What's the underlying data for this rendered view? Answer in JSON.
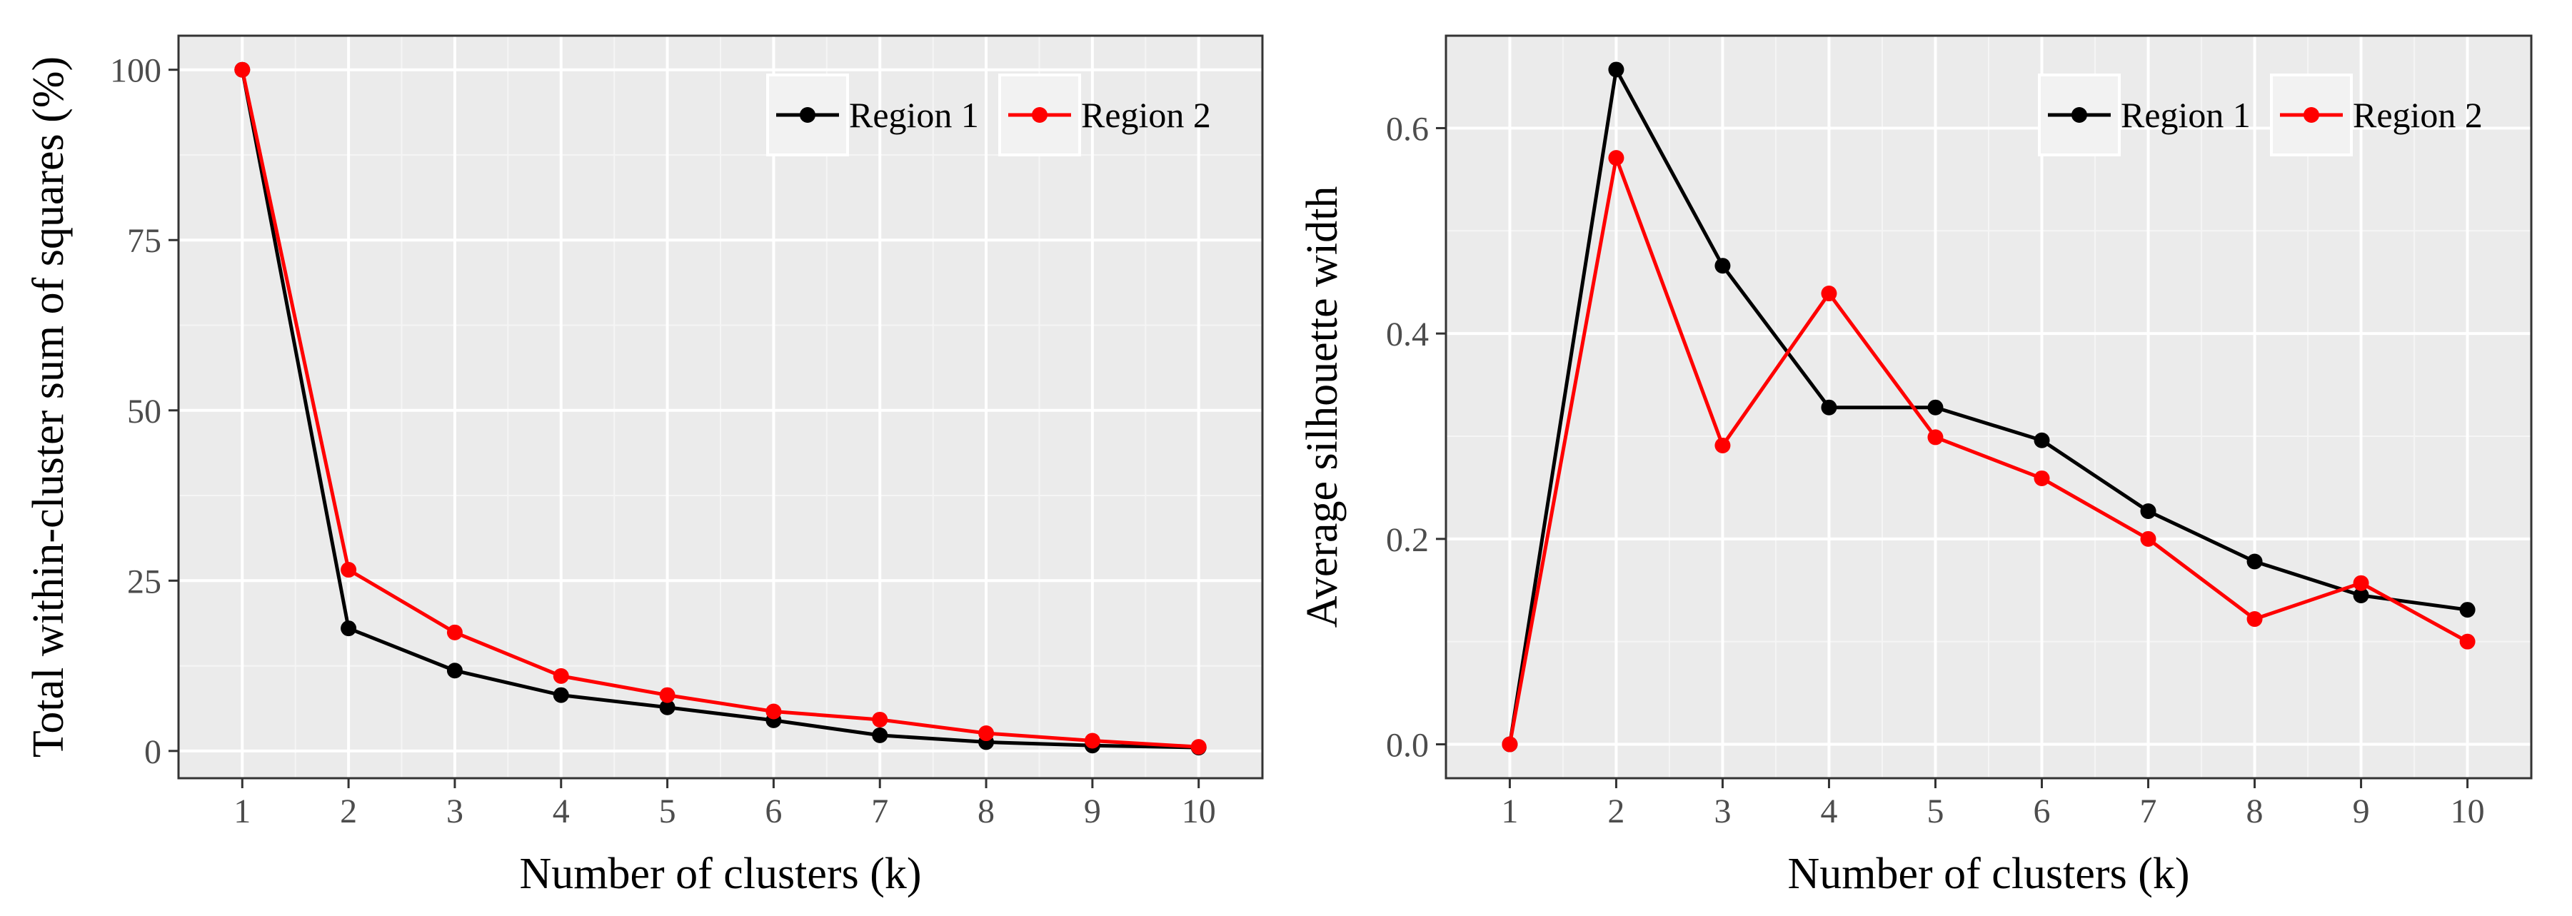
{
  "chart_data": [
    {
      "type": "line",
      "title": "",
      "xlabel": "Number of clusters (k)",
      "ylabel": "Total within-cluster sum of squares (%)",
      "x": [
        1,
        2,
        3,
        4,
        5,
        6,
        7,
        8,
        9,
        10
      ],
      "xlim": [
        0.4,
        10.6
      ],
      "ylim": [
        -4,
        105
      ],
      "yticks": [
        0,
        25,
        50,
        75,
        100
      ],
      "xtick_labels": [
        "1",
        "2",
        "3",
        "4",
        "5",
        "6",
        "7",
        "8",
        "9",
        "10"
      ],
      "ytick_labels": [
        "0",
        "25",
        "50",
        "75",
        "100"
      ],
      "grid": true,
      "legend_position": "top-right",
      "series": [
        {
          "name": "Region 1",
          "color": "#000000",
          "values": [
            100,
            18,
            11.8,
            8.2,
            6.4,
            4.5,
            2.3,
            1.3,
            0.8,
            0.5
          ]
        },
        {
          "name": "Region 2",
          "color": "#ff0000",
          "values": [
            100,
            26.6,
            17.4,
            11,
            8.2,
            5.8,
            4.6,
            2.6,
            1.5,
            0.6
          ]
        }
      ]
    },
    {
      "type": "line",
      "title": "",
      "xlabel": "Number of clusters (k)",
      "ylabel": "Average silhouette width",
      "x": [
        1,
        2,
        3,
        4,
        5,
        6,
        7,
        8,
        9,
        10
      ],
      "xlim": [
        0.4,
        10.6
      ],
      "ylim": [
        -0.033,
        0.69
      ],
      "yticks": [
        0,
        0.2,
        0.4,
        0.6
      ],
      "xtick_labels": [
        "1",
        "2",
        "3",
        "4",
        "5",
        "6",
        "7",
        "8",
        "9",
        "10"
      ],
      "ytick_labels": [
        "0.0",
        "0.2",
        "0.4",
        "0.6"
      ],
      "grid": true,
      "legend_position": "top-right",
      "series": [
        {
          "name": "Region 1",
          "color": "#000000",
          "values": [
            0,
            0.657,
            0.466,
            0.328,
            0.328,
            0.296,
            0.227,
            0.178,
            0.145,
            0.131
          ]
        },
        {
          "name": "Region 2",
          "color": "#ff0000",
          "values": [
            0,
            0.571,
            0.291,
            0.439,
            0.299,
            0.259,
            0.2,
            0.122,
            0.157,
            0.1
          ]
        }
      ]
    }
  ]
}
